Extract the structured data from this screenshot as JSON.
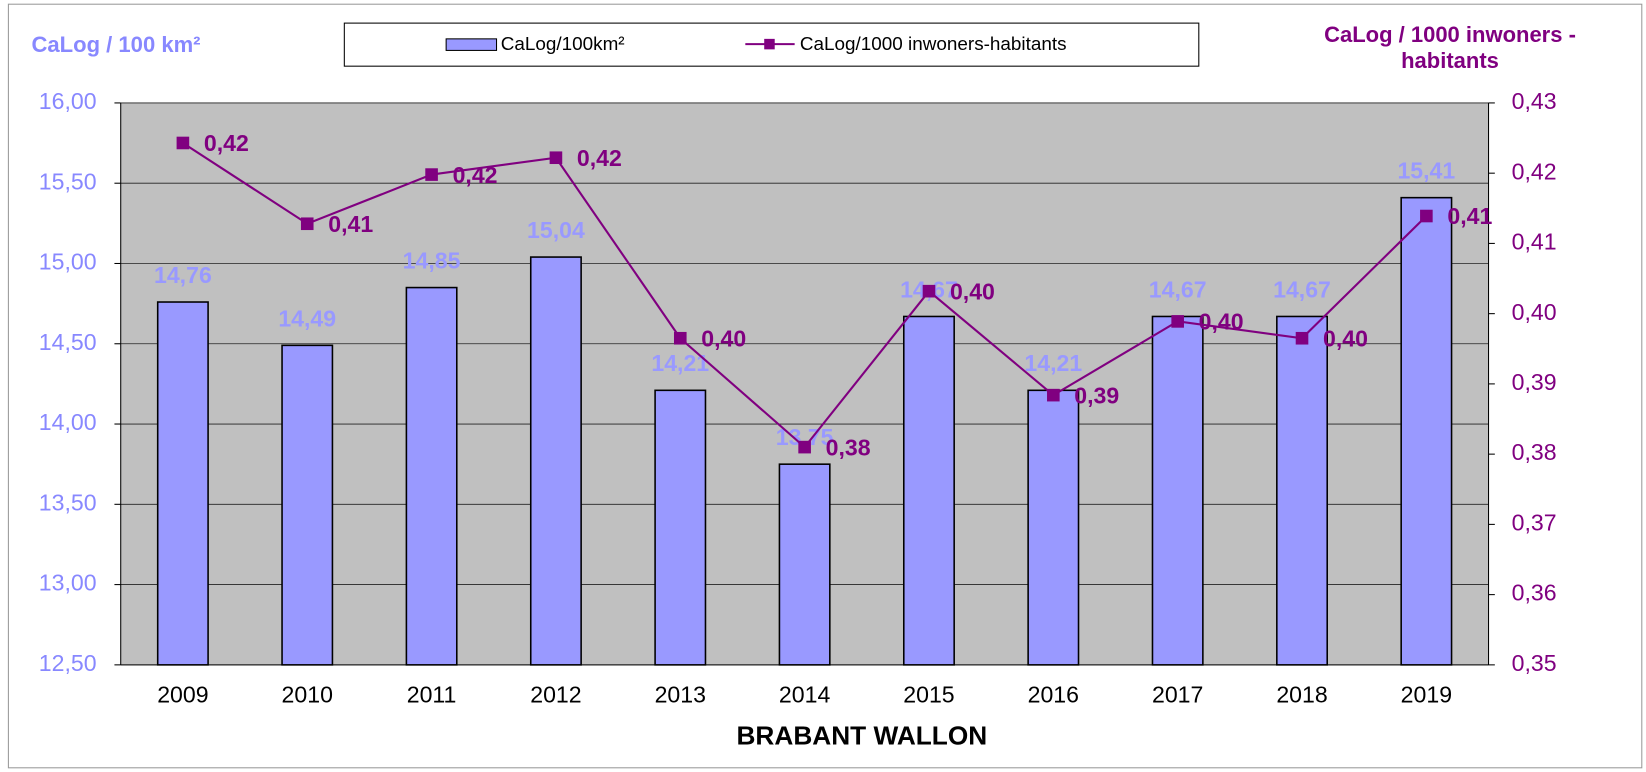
{
  "chart_data": {
    "type": "bar",
    "x_label": "BRABANT WALLON",
    "y_label": "CaLog / 100 km²",
    "y2_label": "CaLog / 1000 inwoners - habitants",
    "categories": [
      "2009",
      "2010",
      "2011",
      "2012",
      "2013",
      "2014",
      "2015",
      "2016",
      "2017",
      "2018",
      "2019"
    ],
    "series": [
      {
        "name": "CaLog/100km²",
        "type": "bar",
        "color": "#9999ff",
        "values": [
          14.76,
          14.49,
          14.85,
          15.04,
          14.21,
          13.75,
          14.67,
          14.21,
          14.67,
          14.67,
          15.41
        ],
        "value_labels": [
          "14,76",
          "14,49",
          "14,85",
          "15,04",
          "14,21",
          "13,75",
          "14,67",
          "14,21",
          "14,67",
          "14,67",
          "15,41"
        ]
      },
      {
        "name": "CaLog/1000 inwoners-habitants",
        "type": "line",
        "axis": "y2",
        "color": "#800080",
        "values": [
          0.4243,
          0.4128,
          0.4198,
          0.4222,
          0.3965,
          0.381,
          0.4032,
          0.3884,
          0.3989,
          0.3965,
          0.4139
        ],
        "value_labels": [
          "0,42",
          "0,41",
          "0,42",
          "0,42",
          "0,40",
          "0,38",
          "0,40",
          "0,39",
          "0,40",
          "0,40",
          "0,41"
        ]
      }
    ],
    "ylim": [
      12.5,
      16
    ],
    "yticks": [
      {
        "value": 12.5,
        "label": "12,50"
      },
      {
        "value": 13,
        "label": "13,00"
      },
      {
        "value": 13.5,
        "label": "13,50"
      },
      {
        "value": 14,
        "label": "14,00"
      },
      {
        "value": 14.5,
        "label": "14,50"
      },
      {
        "value": 15,
        "label": "15,00"
      },
      {
        "value": 15.5,
        "label": "15,50"
      },
      {
        "value": 16,
        "label": "16,00"
      }
    ],
    "y2lim": [
      0.35,
      0.43
    ],
    "y2ticks": [
      {
        "value": 0.35,
        "label": "0,35"
      },
      {
        "value": 0.36,
        "label": "0,36"
      },
      {
        "value": 0.37,
        "label": "0,37"
      },
      {
        "value": 0.38,
        "label": "0,38"
      },
      {
        "value": 0.39,
        "label": "0,39"
      },
      {
        "value": 0.4,
        "label": "0,40"
      },
      {
        "value": 0.41,
        "label": "0,41"
      },
      {
        "value": 0.42,
        "label": "0,42"
      },
      {
        "value": 0.43,
        "label": "0,43"
      }
    ],
    "grid": true
  }
}
